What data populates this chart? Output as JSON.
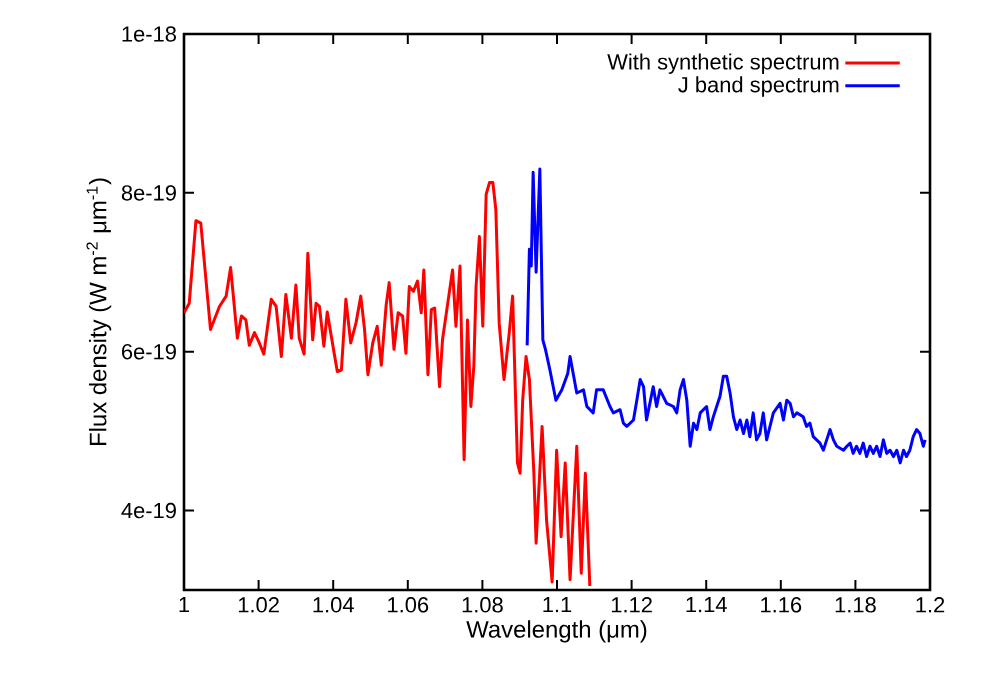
{
  "chart_data": {
    "type": "line",
    "xlabel": "Wavelength (μm)",
    "ylabel": "Flux density (W m$^{-2}$ μm$^{-1}$)",
    "xlim": [
      1,
      1.2
    ],
    "xticks": [
      1,
      1.02,
      1.04,
      1.06,
      1.08,
      1.1,
      1.12,
      1.14,
      1.16,
      1.18,
      1.2
    ],
    "ylim": [
      3e-19,
      1e-18
    ],
    "yticks": [
      {
        "value": 4e-19,
        "label": "4e-19"
      },
      {
        "value": 6e-19,
        "label": "6e-19"
      },
      {
        "value": 8e-19,
        "label": "8e-19"
      },
      {
        "value": 1e-18,
        "label": "1e-18"
      }
    ],
    "legend": "top right",
    "marker": "none",
    "line_style": "solid",
    "grid": false,
    "series": [
      {
        "name": "With synthetic spectrum",
        "color": "#ff0000",
        "x": [
          1.0,
          1.0014,
          1.0032,
          1.0045,
          1.0071,
          1.0095,
          1.0113,
          1.0125,
          1.0143,
          1.0154,
          1.0166,
          1.0175,
          1.0189,
          1.0202,
          1.0214,
          1.0234,
          1.0247,
          1.0261,
          1.0273,
          1.0288,
          1.03,
          1.0309,
          1.0322,
          1.0332,
          1.0345,
          1.0354,
          1.0363,
          1.0375,
          1.0384,
          1.0399,
          1.0411,
          1.0422,
          1.0434,
          1.0447,
          1.0461,
          1.0474,
          1.0484,
          1.0493,
          1.0506,
          1.0518,
          1.0529,
          1.0542,
          1.055,
          1.0563,
          1.0574,
          1.0586,
          1.0595,
          1.0604,
          1.0615,
          1.0626,
          1.0636,
          1.0643,
          1.0654,
          1.0663,
          1.0672,
          1.0685,
          1.0693,
          1.0708,
          1.072,
          1.0729,
          1.074,
          1.0751,
          1.076,
          1.0769,
          1.0777,
          1.0783,
          1.0792,
          1.0801,
          1.081,
          1.0819,
          1.0828,
          1.0836,
          1.0845,
          1.0858,
          1.0872,
          1.0881,
          1.0894,
          1.0901,
          1.0908,
          1.0917,
          1.0926,
          1.0938,
          1.0944,
          1.096,
          1.0972,
          1.0987,
          1.0999,
          1.1011,
          1.1022,
          1.1035,
          1.1053,
          1.1065,
          1.1076,
          1.1088
        ],
        "values": [
          6.49e-19,
          6.61e-19,
          7.65e-19,
          7.62e-19,
          6.28e-19,
          6.57e-19,
          6.7e-19,
          7.06e-19,
          6.17e-19,
          6.45e-19,
          6.4e-19,
          6.08e-19,
          6.24e-19,
          6.11e-19,
          5.97e-19,
          6.66e-19,
          6.57e-19,
          5.94e-19,
          6.72e-19,
          6.17e-19,
          6.84e-19,
          6.17e-19,
          5.97e-19,
          7.24e-19,
          6.15e-19,
          6.61e-19,
          6.57e-19,
          6.07e-19,
          6.5e-19,
          6.08e-19,
          5.75e-19,
          5.77e-19,
          6.66e-19,
          6.11e-19,
          6.36e-19,
          6.7e-19,
          6.28e-19,
          5.71e-19,
          6.11e-19,
          6.32e-19,
          5.83e-19,
          6.59e-19,
          6.87e-19,
          6.03e-19,
          6.49e-19,
          6.45e-19,
          5.98e-19,
          6.82e-19,
          6.76e-19,
          6.89e-19,
          6.49e-19,
          7.03e-19,
          5.71e-19,
          6.53e-19,
          6.55e-19,
          5.56e-19,
          6.15e-19,
          6.64e-19,
          7.03e-19,
          6.32e-19,
          7.08e-19,
          4.64e-19,
          6.4e-19,
          5.31e-19,
          5.82e-19,
          6.82e-19,
          7.45e-19,
          6.32e-19,
          7.98e-19,
          8.13e-19,
          8.13e-19,
          7.79e-19,
          6.36e-19,
          5.65e-19,
          6.24e-19,
          6.7e-19,
          4.6e-19,
          4.47e-19,
          5.39e-19,
          5.94e-19,
          5.65e-19,
          4.47e-19,
          3.59e-19,
          5.06e-19,
          3.88e-19,
          3.1e-19,
          4.76e-19,
          3.67e-19,
          4.6e-19,
          3.13e-19,
          4.81e-19,
          3.21e-19,
          4.47e-19,
          3.05e-19
        ]
      },
      {
        "name": "J band spectrum",
        "color": "#0000ff",
        "x": [
          1.092,
          1.0926,
          1.0931,
          1.0936,
          1.0944,
          1.0954,
          1.0962,
          1.0969,
          1.0981,
          1.0997,
          1.1013,
          1.1029,
          1.1035,
          1.1053,
          1.1071,
          1.108,
          1.1097,
          1.1106,
          1.1124,
          1.1142,
          1.1151,
          1.1169,
          1.1178,
          1.1187,
          1.1205,
          1.1214,
          1.1223,
          1.1232,
          1.124,
          1.1258,
          1.1267,
          1.1276,
          1.1294,
          1.1312,
          1.1321,
          1.133,
          1.1339,
          1.1348,
          1.1357,
          1.1366,
          1.1375,
          1.1384,
          1.1401,
          1.141,
          1.1419,
          1.1437,
          1.1446,
          1.1455,
          1.1464,
          1.1473,
          1.1482,
          1.1491,
          1.15,
          1.1509,
          1.1517,
          1.1526,
          1.1535,
          1.1544,
          1.1553,
          1.1562,
          1.1571,
          1.158,
          1.1598,
          1.1607,
          1.1616,
          1.1625,
          1.1634,
          1.1643,
          1.166,
          1.1669,
          1.1678,
          1.1687,
          1.1705,
          1.1714,
          1.1723,
          1.1732,
          1.1741,
          1.175,
          1.1768,
          1.1777,
          1.1786,
          1.1794,
          1.1803,
          1.1812,
          1.1821,
          1.183,
          1.1839,
          1.1848,
          1.1857,
          1.1866,
          1.1875,
          1.1884,
          1.1893,
          1.1902,
          1.1911,
          1.192,
          1.1929,
          1.1937,
          1.1946,
          1.1955,
          1.1964,
          1.1973,
          1.1982,
          1.1987
        ],
        "values": [
          6.08e-19,
          7.29e-19,
          7.08e-19,
          8.26e-19,
          7e-19,
          8.3e-19,
          6.15e-19,
          6.03e-19,
          5.77e-19,
          5.39e-19,
          5.52e-19,
          5.73e-19,
          5.94e-19,
          5.48e-19,
          5.52e-19,
          5.31e-19,
          5.23e-19,
          5.52e-19,
          5.52e-19,
          5.31e-19,
          5.23e-19,
          5.27e-19,
          5.1e-19,
          5.06e-19,
          5.14e-19,
          5.39e-19,
          5.65e-19,
          5.56e-19,
          5.14e-19,
          5.56e-19,
          5.31e-19,
          5.52e-19,
          5.35e-19,
          5.31e-19,
          5.23e-19,
          5.52e-19,
          5.65e-19,
          5.39e-19,
          4.81e-19,
          5.1e-19,
          5.02e-19,
          5.23e-19,
          5.31e-19,
          5.02e-19,
          5.18e-19,
          5.44e-19,
          5.69e-19,
          5.69e-19,
          5.48e-19,
          5.18e-19,
          5.02e-19,
          5.14e-19,
          4.97e-19,
          5.14e-19,
          4.93e-19,
          5.23e-19,
          4.89e-19,
          4.97e-19,
          5.23e-19,
          4.89e-19,
          5.06e-19,
          5.23e-19,
          5.35e-19,
          5.14e-19,
          5.39e-19,
          5.35e-19,
          5.18e-19,
          5.23e-19,
          5.18e-19,
          5.06e-19,
          5.1e-19,
          4.93e-19,
          4.85e-19,
          4.76e-19,
          4.89e-19,
          5.02e-19,
          4.89e-19,
          4.81e-19,
          4.76e-19,
          4.81e-19,
          4.85e-19,
          4.72e-19,
          4.81e-19,
          4.72e-19,
          4.85e-19,
          4.68e-19,
          4.81e-19,
          4.72e-19,
          4.81e-19,
          4.68e-19,
          4.89e-19,
          4.72e-19,
          4.76e-19,
          4.68e-19,
          4.76e-19,
          4.6e-19,
          4.76e-19,
          4.68e-19,
          4.76e-19,
          4.93e-19,
          5.02e-19,
          4.97e-19,
          4.81e-19,
          4.89e-19
        ]
      }
    ]
  }
}
